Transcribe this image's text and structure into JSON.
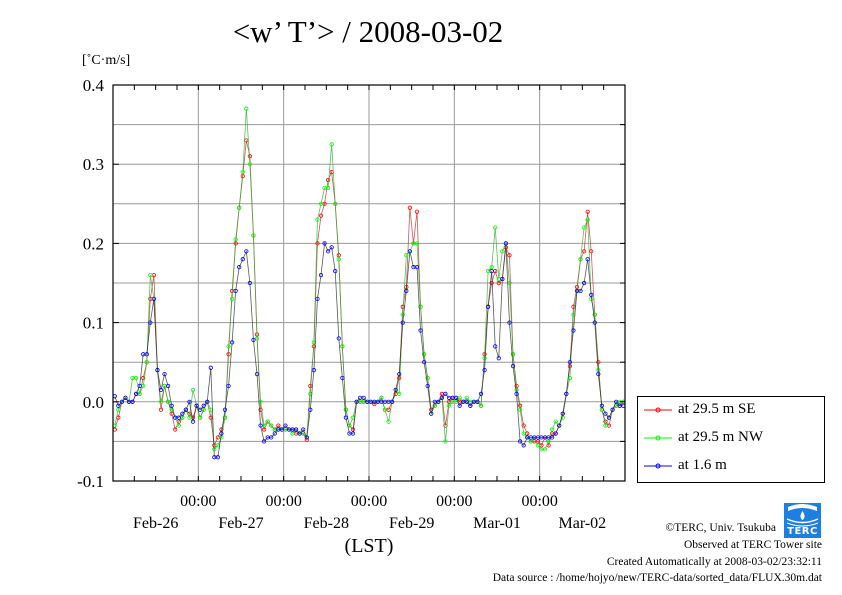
{
  "title": "<w’ T’> / 2008-03-02",
  "chart_data": {
    "type": "line",
    "title": "<w’ T’> / 2008-03-02",
    "ylabel": "[˚C·m/s]",
    "xlabel": "(LST)",
    "ylim": [
      -0.1,
      0.4
    ],
    "yticks": [
      -0.1,
      0.0,
      0.1,
      0.2,
      0.3,
      0.4
    ],
    "ytick_labels": [
      "-0.1",
      "0.0",
      "0.1",
      "0.2",
      "0.3",
      "0.4"
    ],
    "y_gridlines_every": 0.05,
    "x_range_hours": [
      0,
      144
    ],
    "x_start": "Feb-26 00:00",
    "x_step_hours": 1,
    "time_ticks": [
      {
        "hour": 24,
        "label": "00:00"
      },
      {
        "hour": 48,
        "label": "00:00"
      },
      {
        "hour": 72,
        "label": "00:00"
      },
      {
        "hour": 96,
        "label": "00:00"
      },
      {
        "hour": 120,
        "label": "00:00"
      }
    ],
    "date_labels": [
      {
        "hour": 12,
        "label": "Feb-26"
      },
      {
        "hour": 36,
        "label": "Feb-27"
      },
      {
        "hour": 60,
        "label": "Feb-28"
      },
      {
        "hour": 84,
        "label": "Feb-29"
      },
      {
        "hour": 108,
        "label": "Mar-01"
      },
      {
        "hour": 132,
        "label": "Mar-02"
      }
    ],
    "grid": true,
    "legend_position": "right-bottom outside",
    "series": [
      {
        "name": "at 29.5 m SE",
        "color": "#ff0000",
        "line_color": "#c03030",
        "values": [
          -0.035,
          -0.02,
          0.0,
          0.005,
          0.0,
          0.0,
          0.01,
          0.01,
          0.03,
          0.05,
          0.13,
          0.16,
          0.04,
          -0.01,
          0.02,
          0.0,
          -0.015,
          -0.035,
          -0.025,
          -0.02,
          -0.01,
          -0.015,
          -0.02,
          -0.005,
          -0.02,
          -0.01,
          0.0,
          -0.02,
          -0.055,
          -0.045,
          -0.035,
          -0.02,
          0.06,
          0.14,
          0.2,
          0.245,
          0.285,
          0.33,
          0.31,
          0.21,
          0.085,
          -0.01,
          -0.035,
          -0.025,
          -0.03,
          -0.035,
          -0.03,
          -0.035,
          -0.035,
          -0.035,
          -0.035,
          -0.04,
          -0.04,
          -0.04,
          -0.048,
          0.02,
          0.07,
          0.2,
          0.235,
          0.25,
          0.28,
          0.29,
          0.25,
          0.185,
          0.07,
          -0.01,
          -0.03,
          -0.035,
          0.0,
          0.0,
          0.0,
          0.0,
          0.0,
          -0.003,
          0.0,
          0.005,
          -0.01,
          -0.01,
          0.0,
          0.01,
          0.03,
          0.12,
          0.145,
          0.245,
          0.2,
          0.24,
          0.12,
          0.06,
          0.03,
          -0.01,
          -0.005,
          0.0,
          0.01,
          -0.03,
          0.0,
          0.005,
          0.005,
          0.0,
          0.0,
          0.0,
          -0.005,
          0.0,
          0.0,
          -0.005,
          0.06,
          0.12,
          0.15,
          0.165,
          0.15,
          0.155,
          0.195,
          0.185,
          0.06,
          0.02,
          -0.005,
          -0.03,
          -0.04,
          -0.05,
          -0.05,
          -0.05,
          -0.055,
          -0.045,
          -0.055,
          -0.04,
          -0.04,
          -0.03,
          -0.015,
          0.01,
          0.045,
          0.12,
          0.145,
          0.18,
          0.19,
          0.24,
          0.19,
          0.11,
          0.05,
          -0.01,
          -0.025,
          -0.03,
          -0.01,
          -0.005,
          -0.005,
          0.0
        ]
      },
      {
        "name": "at 29.5 m NW",
        "color": "#00ff00",
        "line_color": "#30b030",
        "values": [
          -0.03,
          -0.01,
          0.0,
          0.005,
          0.0,
          0.03,
          0.03,
          0.01,
          0.02,
          0.05,
          0.16,
          0.13,
          0.04,
          0.0,
          0.02,
          0.0,
          -0.01,
          -0.02,
          -0.03,
          -0.02,
          -0.01,
          -0.02,
          0.015,
          -0.005,
          -0.02,
          -0.01,
          0.0,
          -0.01,
          -0.06,
          -0.055,
          -0.045,
          -0.02,
          0.07,
          0.13,
          0.205,
          0.245,
          0.29,
          0.37,
          0.3,
          0.21,
          0.08,
          0.0,
          -0.03,
          -0.025,
          -0.03,
          -0.035,
          -0.035,
          -0.035,
          -0.035,
          -0.035,
          -0.04,
          -0.035,
          -0.04,
          -0.04,
          -0.045,
          0.01,
          0.075,
          0.23,
          0.25,
          0.27,
          0.27,
          0.325,
          0.25,
          0.18,
          0.07,
          -0.01,
          -0.03,
          -0.02,
          0.0,
          0.0,
          0.0,
          0.0,
          0.0,
          0.0,
          0.0,
          0.005,
          -0.01,
          -0.025,
          0.0,
          0.015,
          0.01,
          0.11,
          0.185,
          0.19,
          0.2,
          0.2,
          0.12,
          0.06,
          0.03,
          -0.015,
          -0.005,
          0.0,
          0.005,
          -0.05,
          -0.005,
          0.0,
          0.0,
          0.005,
          0.0,
          0.005,
          0.0,
          0.0,
          0.0,
          -0.005,
          0.055,
          0.165,
          0.17,
          0.22,
          0.155,
          0.19,
          0.2,
          0.15,
          0.06,
          0.015,
          -0.01,
          -0.04,
          -0.045,
          -0.05,
          -0.045,
          -0.055,
          -0.06,
          -0.06,
          -0.05,
          -0.035,
          -0.025,
          -0.03,
          -0.02,
          0.01,
          0.03,
          0.11,
          0.14,
          0.18,
          0.22,
          0.23,
          0.13,
          0.11,
          0.04,
          -0.01,
          -0.03,
          -0.02,
          -0.01,
          -0.005,
          0.0,
          0.0
        ]
      },
      {
        "name": "at 1.6 m",
        "color": "#0000ff",
        "line_color": "#303030",
        "values": [
          0.007,
          -0.005,
          0.0,
          0.005,
          0.0,
          0.0,
          0.01,
          0.02,
          0.06,
          0.06,
          0.1,
          0.13,
          0.04,
          0.015,
          0.035,
          0.02,
          -0.005,
          -0.02,
          -0.02,
          -0.015,
          -0.01,
          0.0,
          -0.025,
          -0.005,
          -0.01,
          -0.005,
          0.0,
          0.043,
          -0.07,
          -0.07,
          -0.04,
          -0.01,
          0.02,
          0.075,
          0.14,
          0.17,
          0.18,
          0.19,
          0.15,
          0.078,
          0.035,
          -0.03,
          -0.05,
          -0.045,
          -0.045,
          -0.04,
          -0.035,
          -0.035,
          -0.03,
          -0.035,
          -0.035,
          -0.035,
          -0.04,
          -0.035,
          -0.045,
          -0.01,
          0.04,
          0.13,
          0.16,
          0.2,
          0.19,
          0.195,
          0.165,
          0.08,
          0.03,
          -0.02,
          -0.04,
          -0.04,
          0.0,
          0.005,
          0.005,
          0.0,
          0.0,
          0.0,
          0.0,
          0.0,
          0.0,
          0.0,
          0.0,
          0.015,
          0.035,
          0.1,
          0.14,
          0.19,
          0.17,
          0.17,
          0.09,
          0.05,
          0.02,
          -0.015,
          0.0,
          0.0,
          0.005,
          0.01,
          0.005,
          0.005,
          0.005,
          -0.005,
          0.0,
          0.0,
          -0.005,
          0.0,
          0.0,
          0.01,
          0.04,
          0.12,
          0.165,
          0.07,
          0.055,
          0.155,
          0.2,
          0.1,
          0.045,
          0.01,
          -0.05,
          -0.055,
          -0.045,
          -0.045,
          -0.045,
          -0.045,
          -0.045,
          -0.045,
          -0.045,
          -0.045,
          -0.04,
          -0.03,
          -0.015,
          0.01,
          0.05,
          0.09,
          0.14,
          0.14,
          0.15,
          0.18,
          0.135,
          0.1,
          0.035,
          -0.005,
          -0.015,
          -0.02,
          -0.01,
          0.0,
          -0.005,
          -0.005
        ]
      }
    ]
  },
  "footer": {
    "copyright": "©TERC, Univ. Tsukuba",
    "observed": "Observed at TERC Tower site",
    "created": "Created Automatically at 2008-03-02/23:32:11",
    "source": "Data source : /home/hojyo/new/TERC-data/sorted_data/FLUX.30m.dat",
    "logo_text": "TERC"
  }
}
